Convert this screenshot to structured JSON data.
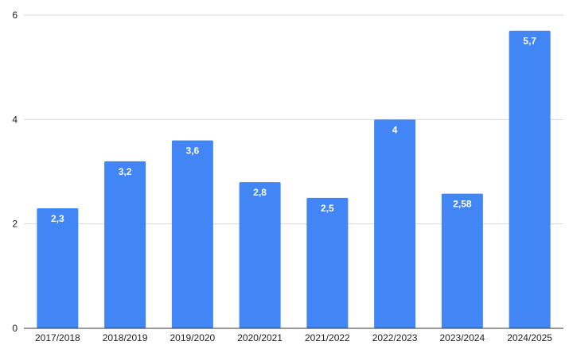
{
  "chart_data": {
    "type": "bar",
    "title": "",
    "xlabel": "",
    "ylabel": "",
    "categories": [
      "2017/2018",
      "2018/2019",
      "2019/2020",
      "2020/2021",
      "2021/2022",
      "2022/2023",
      "2023/2024",
      "2024/2025"
    ],
    "values": [
      2.3,
      3.2,
      3.6,
      2.8,
      2.5,
      4,
      2.58,
      5.7
    ],
    "data_labels": [
      "2,3",
      "3,2",
      "3,6",
      "2,8",
      "2,5",
      "4",
      "2,58",
      "5,7"
    ],
    "ylim": [
      0,
      6
    ],
    "y_ticks": [
      0,
      2,
      4,
      6
    ],
    "y_tick_labels": [
      "0",
      "2",
      "4",
      "6"
    ],
    "grid": true,
    "legend": "none",
    "bar_color": "#4285f4",
    "grid_color": "#d9d9d9"
  }
}
